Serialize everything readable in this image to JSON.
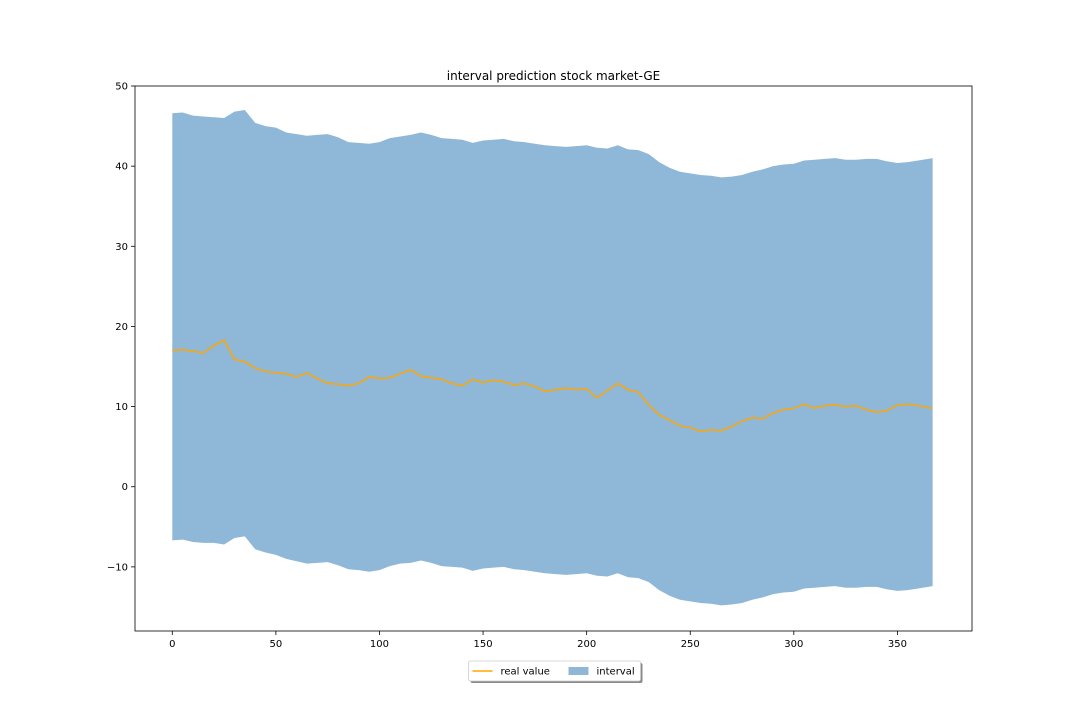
{
  "chart_data": {
    "type": "area",
    "title": "interval prediction stock market-GE",
    "xlabel": "",
    "ylabel": "",
    "xlim": [
      -18,
      386
    ],
    "ylim": [
      -18,
      50
    ],
    "xticks": [
      0,
      50,
      100,
      150,
      200,
      250,
      300,
      350
    ],
    "yticks": [
      -10,
      0,
      10,
      20,
      30,
      40,
      50
    ],
    "ytick_labels": [
      "−10",
      "0",
      "10",
      "20",
      "30",
      "40",
      "50"
    ],
    "grid": false,
    "legend": {
      "placement": "below-center",
      "entries": [
        "real value",
        "interval"
      ]
    },
    "colors": {
      "real_value": "#ffa500",
      "interval": "#8fb8d8"
    },
    "interval": {
      "name": "interval",
      "x": [
        0,
        5,
        10,
        15,
        20,
        25,
        30,
        35,
        40,
        45,
        50,
        55,
        60,
        65,
        70,
        75,
        80,
        85,
        90,
        95,
        100,
        105,
        110,
        115,
        120,
        125,
        130,
        135,
        140,
        145,
        150,
        155,
        160,
        165,
        170,
        175,
        180,
        185,
        190,
        195,
        200,
        205,
        210,
        215,
        220,
        225,
        230,
        235,
        240,
        245,
        250,
        255,
        260,
        265,
        270,
        275,
        280,
        285,
        290,
        295,
        300,
        305,
        310,
        315,
        320,
        325,
        330,
        335,
        340,
        345,
        350,
        355,
        360,
        367
      ],
      "upper": [
        46.6,
        46.7,
        46.3,
        46.2,
        46.1,
        46.0,
        46.8,
        47.0,
        45.4,
        45.0,
        44.8,
        44.2,
        44.0,
        43.8,
        43.9,
        44.0,
        43.6,
        43.0,
        42.9,
        42.8,
        43.0,
        43.5,
        43.7,
        43.9,
        44.2,
        43.9,
        43.5,
        43.4,
        43.3,
        42.9,
        43.2,
        43.3,
        43.4,
        43.1,
        43.0,
        42.8,
        42.6,
        42.5,
        42.4,
        42.5,
        42.6,
        42.3,
        42.2,
        42.6,
        42.1,
        42.0,
        41.5,
        40.5,
        39.8,
        39.3,
        39.1,
        38.9,
        38.8,
        38.6,
        38.7,
        38.9,
        39.3,
        39.6,
        40.0,
        40.2,
        40.3,
        40.7,
        40.8,
        40.9,
        41.0,
        40.8,
        40.8,
        40.9,
        40.9,
        40.6,
        40.4,
        40.5,
        40.7,
        41.0
      ],
      "lower": [
        -6.7,
        -6.6,
        -6.9,
        -7.0,
        -7.0,
        -7.2,
        -6.4,
        -6.2,
        -7.8,
        -8.2,
        -8.5,
        -9.0,
        -9.3,
        -9.6,
        -9.5,
        -9.4,
        -9.8,
        -10.3,
        -10.4,
        -10.6,
        -10.4,
        -9.9,
        -9.6,
        -9.5,
        -9.2,
        -9.5,
        -9.9,
        -10.0,
        -10.1,
        -10.5,
        -10.2,
        -10.1,
        -10.0,
        -10.3,
        -10.4,
        -10.6,
        -10.8,
        -10.9,
        -11.0,
        -10.9,
        -10.8,
        -11.1,
        -11.2,
        -10.8,
        -11.3,
        -11.4,
        -11.9,
        -12.9,
        -13.6,
        -14.1,
        -14.3,
        -14.5,
        -14.6,
        -14.8,
        -14.7,
        -14.5,
        -14.1,
        -13.8,
        -13.4,
        -13.2,
        -13.1,
        -12.7,
        -12.6,
        -12.5,
        -12.4,
        -12.6,
        -12.6,
        -12.5,
        -12.5,
        -12.8,
        -13.0,
        -12.9,
        -12.7,
        -12.4
      ]
    },
    "series": [
      {
        "name": "real value",
        "x": [
          0,
          5,
          10,
          15,
          20,
          25,
          30,
          35,
          40,
          45,
          50,
          55,
          60,
          65,
          70,
          75,
          80,
          85,
          90,
          95,
          100,
          105,
          110,
          115,
          120,
          125,
          130,
          135,
          140,
          145,
          150,
          155,
          160,
          165,
          170,
          175,
          180,
          185,
          190,
          195,
          200,
          205,
          210,
          215,
          220,
          225,
          230,
          235,
          240,
          245,
          250,
          255,
          260,
          265,
          270,
          275,
          280,
          285,
          290,
          295,
          300,
          305,
          310,
          315,
          320,
          325,
          330,
          335,
          340,
          345,
          350,
          355,
          360,
          367
        ],
        "values": [
          17.0,
          17.1,
          16.9,
          16.7,
          17.6,
          18.3,
          15.9,
          15.6,
          14.8,
          14.4,
          14.2,
          14.1,
          13.7,
          14.2,
          13.5,
          12.9,
          12.8,
          12.6,
          12.9,
          13.7,
          13.5,
          13.6,
          14.1,
          14.6,
          13.8,
          13.6,
          13.4,
          12.9,
          12.6,
          13.4,
          13.0,
          13.3,
          13.1,
          12.7,
          12.9,
          12.5,
          11.9,
          12.1,
          12.3,
          12.1,
          12.2,
          11.1,
          12.0,
          12.9,
          12.1,
          11.8,
          10.2,
          9.0,
          8.3,
          7.6,
          7.4,
          6.9,
          7.1,
          7.0,
          7.5,
          8.2,
          8.6,
          8.5,
          9.2,
          9.6,
          9.8,
          10.3,
          9.8,
          10.1,
          10.2,
          10.0,
          10.1,
          9.6,
          9.3,
          9.5,
          10.2,
          10.3,
          10.1,
          9.8
        ]
      }
    ]
  }
}
